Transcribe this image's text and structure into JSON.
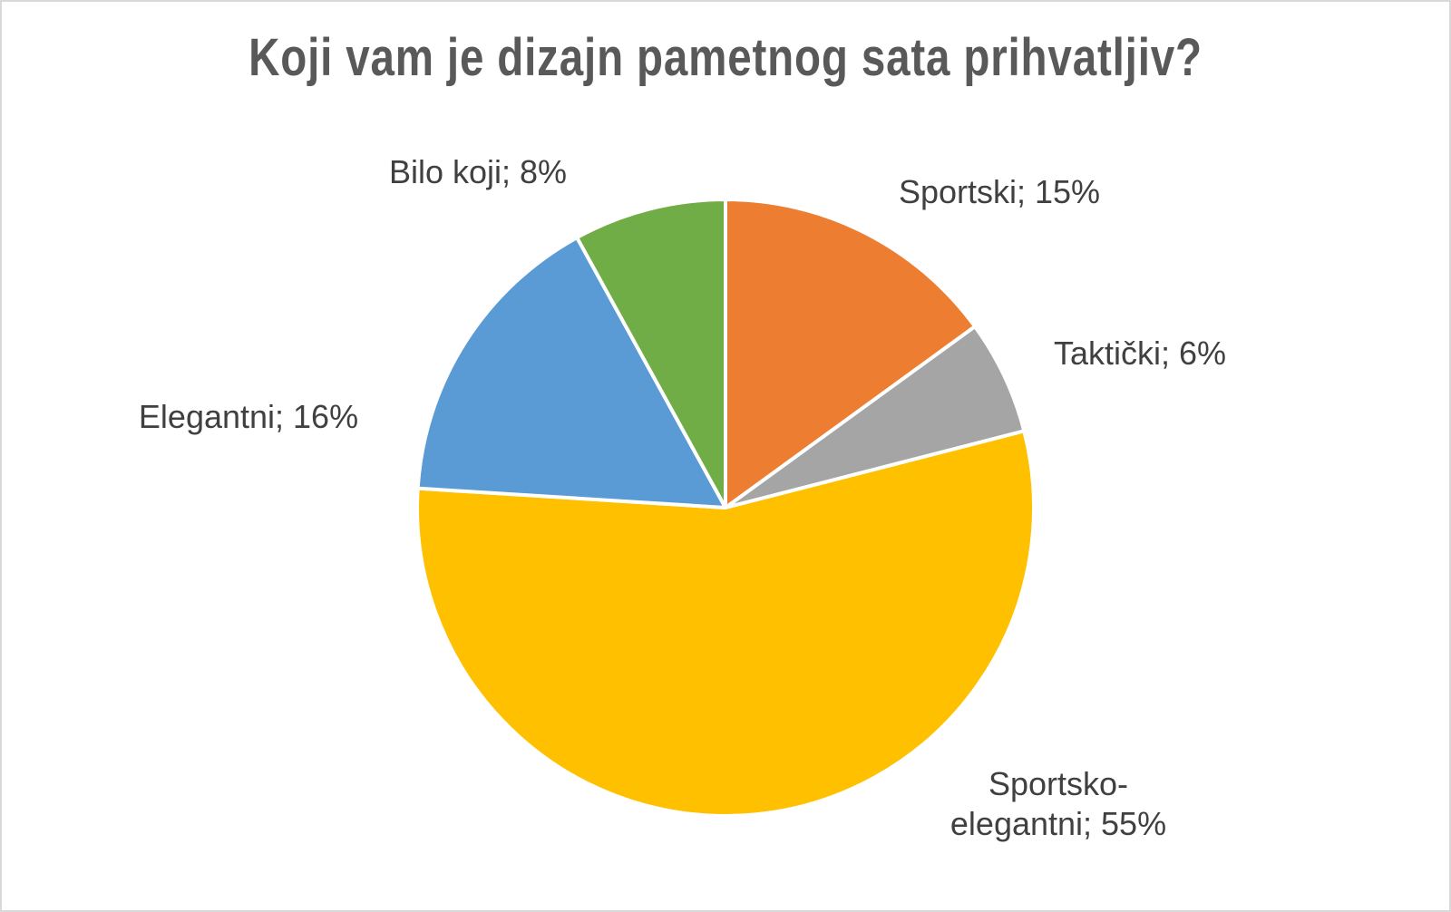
{
  "chart_data": {
    "type": "pie",
    "title": "Koji vam je dizajn pametnog sata prihvatljiv?",
    "slices": [
      {
        "name": "Sportski",
        "label_lines": [
          "Sportski; 15%"
        ],
        "value": 15,
        "color": "#ED7D31"
      },
      {
        "name": "Taktički",
        "label_lines": [
          "Taktički; 6%"
        ],
        "value": 6,
        "color": "#A5A5A5"
      },
      {
        "name": "Sportsko-elegantni",
        "label_lines": [
          "Sportsko-",
          "elegantni; 55%"
        ],
        "value": 55,
        "color": "#FFC000"
      },
      {
        "name": "Elegantni",
        "label_lines": [
          "Elegantni; 16%"
        ],
        "value": 16,
        "color": "#5B9BD5"
      },
      {
        "name": "Bilo koji",
        "label_lines": [
          "Bilo koji; 8%"
        ],
        "value": 8,
        "color": "#70AD47"
      }
    ],
    "legend": "none"
  }
}
